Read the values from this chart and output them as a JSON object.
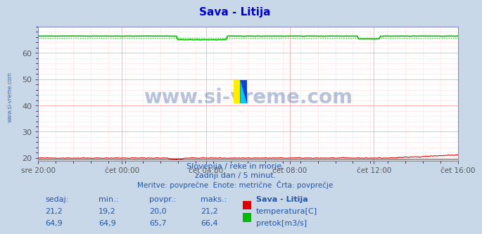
{
  "title": "Sava - Litija",
  "title_color": "#0000cc",
  "background_color": "#c8d8e8",
  "plot_background": "#ffffff",
  "x_labels": [
    "sre 20:00",
    "čet 00:00",
    "čet 04:00",
    "čet 08:00",
    "čet 12:00",
    "čet 16:00"
  ],
  "ylim": [
    19.0,
    70.0
  ],
  "yticks": [
    20,
    30,
    40,
    50,
    60
  ],
  "grid_color_major": "#ffaaaa",
  "grid_color_minor": "#ffdddd",
  "temp_color": "#dd0000",
  "flow_color": "#00bb00",
  "blue_line_color": "#0000cc",
  "temp_avg": 20.0,
  "flow_avg": 65.7,
  "n_points": 289,
  "watermark": "www.si-vreme.com",
  "watermark_color": "#1a3a8a",
  "watermark_alpha": 0.3,
  "sub_text1": "Slovenija / reke in morje.",
  "sub_text2": "zadnji dan / 5 minut.",
  "sub_text3": "Meritve: povprečne  Enote: metrične  Črta: povprečje",
  "sub_text_color": "#2255aa",
  "table_header_color": "#2255aa",
  "table_value_color": "#2255aa",
  "left_label": "www.si-vreme.com",
  "left_label_color": "#2255aa",
  "headers": [
    "sedaj:",
    "min.:",
    "povpr.:",
    "maks.:",
    "Sava - Litija"
  ],
  "row1_vals": [
    "21,2",
    "19,2",
    "20,0",
    "21,2"
  ],
  "row2_vals": [
    "64,9",
    "64,9",
    "65,7",
    "66,4"
  ],
  "row1_legend": "temperatura[C]",
  "row2_legend": "pretok[m3/s]"
}
